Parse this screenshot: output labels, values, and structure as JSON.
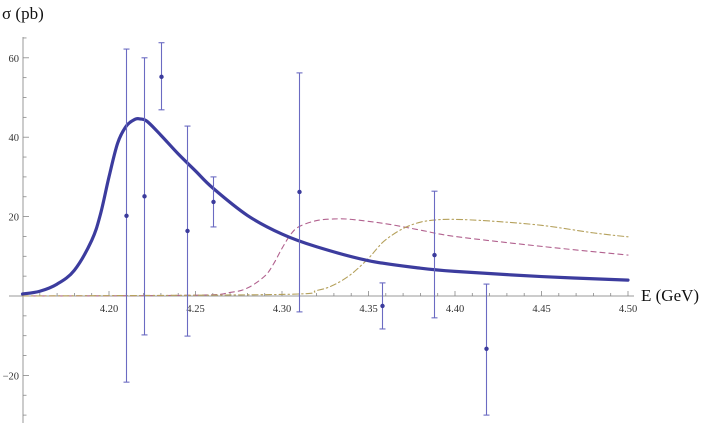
{
  "chart_data": {
    "type": "line",
    "title": "",
    "xlabel": "E (GeV)",
    "ylabel": "σ (pb)",
    "xlim": [
      4.15,
      4.505
    ],
    "ylim": [
      -32,
      66
    ],
    "x_ticks": [
      4.2,
      4.25,
      4.3,
      4.35,
      4.4,
      4.45,
      4.5
    ],
    "x_tick_labels": [
      "4.20",
      "4.25",
      "4.30",
      "4.35",
      "4.40",
      "4.45",
      "4.50"
    ],
    "y_ticks": [
      -20,
      20,
      40,
      60
    ],
    "y_tick_labels": [
      "-20",
      "20",
      "40",
      "60"
    ],
    "grid": false,
    "legend": null,
    "series": [
      {
        "name": "solid curve",
        "style": "solid",
        "color": "#3c3c9e",
        "x": [
          4.15,
          4.16,
          4.17,
          4.18,
          4.19,
          4.195,
          4.2,
          4.205,
          4.21,
          4.215,
          4.218,
          4.222,
          4.23,
          4.24,
          4.25,
          4.26,
          4.28,
          4.3,
          4.32,
          4.35,
          4.38,
          4.4,
          4.45,
          4.5
        ],
        "y": [
          0.5,
          1.2,
          3.0,
          6.5,
          14.0,
          20.5,
          30.0,
          38.5,
          42.8,
          44.5,
          44.6,
          44.0,
          40.5,
          35.8,
          31.5,
          27.2,
          20.3,
          15.6,
          12.4,
          8.9,
          7.0,
          6.2,
          4.9,
          4.0
        ]
      },
      {
        "name": "dashed curve",
        "style": "dashed",
        "color": "#b2628f",
        "x": [
          4.15,
          4.25,
          4.27,
          4.28,
          4.29,
          4.295,
          4.3,
          4.305,
          4.31,
          4.32,
          4.33,
          4.34,
          4.36,
          4.38,
          4.4,
          4.45,
          4.5
        ],
        "y": [
          0.0,
          0.2,
          0.9,
          2.0,
          5.0,
          8.0,
          12.0,
          15.5,
          17.5,
          19.0,
          19.4,
          19.3,
          18.2,
          16.6,
          15.0,
          12.5,
          10.3
        ]
      },
      {
        "name": "dash-dot curve",
        "style": "dash-dot",
        "color": "#b5a15c",
        "x": [
          4.15,
          4.3,
          4.32,
          4.33,
          4.34,
          4.35,
          4.355,
          4.36,
          4.37,
          4.38,
          4.39,
          4.4,
          4.42,
          4.45,
          4.48,
          4.5
        ],
        "y": [
          0.0,
          0.4,
          1.4,
          2.8,
          5.5,
          9.5,
          12.0,
          14.2,
          17.0,
          18.6,
          19.2,
          19.3,
          18.9,
          17.8,
          15.9,
          14.9
        ]
      }
    ],
    "data_points": {
      "name": "measurements",
      "color": "#3b3b9c",
      "errorbar_color": "#6b6bc2",
      "points": [
        {
          "x": 4.21,
          "y": 20.2,
          "y_low": -21.7,
          "y_high": 62.2
        },
        {
          "x": 4.22,
          "y": 25.1,
          "y_low": -9.8,
          "y_high": 60.0
        },
        {
          "x": 4.23,
          "y": 55.2,
          "y_low": 46.9,
          "y_high": 63.8
        },
        {
          "x": 4.245,
          "y": 16.4,
          "y_low": -10.1,
          "y_high": 42.8
        },
        {
          "x": 4.26,
          "y": 23.7,
          "y_low": 17.4,
          "y_high": 30.0
        },
        {
          "x": 4.31,
          "y": 26.2,
          "y_low": -4.0,
          "y_high": 56.2
        },
        {
          "x": 4.358,
          "y": -2.5,
          "y_low": -8.3,
          "y_high": 3.3
        },
        {
          "x": 4.388,
          "y": 10.3,
          "y_low": -5.5,
          "y_high": 26.4
        },
        {
          "x": 4.418,
          "y": -13.3,
          "y_low": -30.0,
          "y_high": 3.0
        }
      ]
    }
  },
  "labels": {
    "y_axis_title": "σ (pb)",
    "x_axis_title": "E (GeV)"
  }
}
